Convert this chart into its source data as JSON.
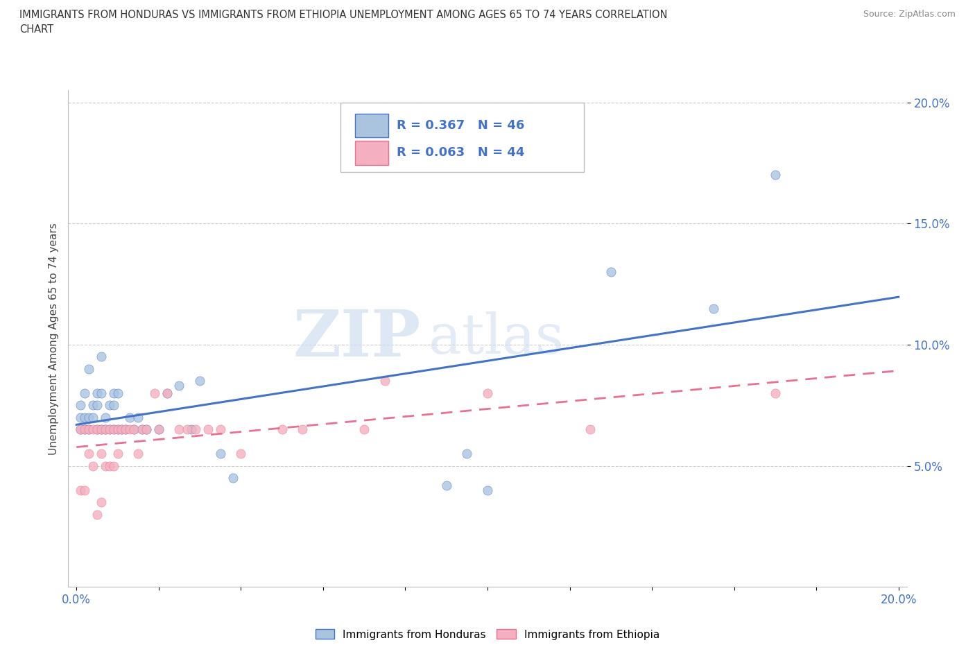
{
  "title_line1": "IMMIGRANTS FROM HONDURAS VS IMMIGRANTS FROM ETHIOPIA UNEMPLOYMENT AMONG AGES 65 TO 74 YEARS CORRELATION",
  "title_line2": "CHART",
  "source": "Source: ZipAtlas.com",
  "ylabel": "Unemployment Among Ages 65 to 74 years",
  "legend1_label": "Immigrants from Honduras",
  "legend2_label": "Immigrants from Ethiopia",
  "R_honduras": "R = 0.367",
  "N_honduras": "N = 46",
  "R_ethiopia": "R = 0.063",
  "N_ethiopia": "N = 44",
  "watermark_zip": "ZIP",
  "watermark_atlas": "atlas",
  "background_color": "#ffffff",
  "scatter_color_honduras": "#aac4e0",
  "scatter_color_ethiopia": "#f4b0c0",
  "line_color_honduras": "#4472c4",
  "line_color_ethiopia": "#e87090",
  "grid_color": "#cccccc",
  "honduras_x": [
    0.001,
    0.001,
    0.001,
    0.002,
    0.002,
    0.002,
    0.003,
    0.003,
    0.003,
    0.004,
    0.004,
    0.005,
    0.005,
    0.005,
    0.006,
    0.006,
    0.006,
    0.007,
    0.007,
    0.008,
    0.008,
    0.009,
    0.009,
    0.009,
    0.01,
    0.01,
    0.011,
    0.012,
    0.013,
    0.014,
    0.015,
    0.016,
    0.017,
    0.02,
    0.022,
    0.025,
    0.028,
    0.03,
    0.035,
    0.038,
    0.09,
    0.095,
    0.1,
    0.13,
    0.155,
    0.17
  ],
  "honduras_y": [
    0.065,
    0.07,
    0.075,
    0.065,
    0.07,
    0.08,
    0.065,
    0.07,
    0.09,
    0.07,
    0.075,
    0.065,
    0.075,
    0.08,
    0.065,
    0.08,
    0.095,
    0.065,
    0.07,
    0.065,
    0.075,
    0.065,
    0.075,
    0.08,
    0.065,
    0.08,
    0.065,
    0.065,
    0.07,
    0.065,
    0.07,
    0.065,
    0.065,
    0.065,
    0.08,
    0.083,
    0.065,
    0.085,
    0.055,
    0.045,
    0.042,
    0.055,
    0.04,
    0.13,
    0.115,
    0.17
  ],
  "ethiopia_x": [
    0.001,
    0.001,
    0.002,
    0.002,
    0.003,
    0.003,
    0.004,
    0.004,
    0.005,
    0.005,
    0.006,
    0.006,
    0.006,
    0.007,
    0.007,
    0.008,
    0.008,
    0.009,
    0.009,
    0.01,
    0.01,
    0.011,
    0.012,
    0.013,
    0.014,
    0.015,
    0.016,
    0.017,
    0.019,
    0.02,
    0.022,
    0.025,
    0.027,
    0.029,
    0.032,
    0.035,
    0.04,
    0.05,
    0.055,
    0.07,
    0.075,
    0.1,
    0.125,
    0.17
  ],
  "ethiopia_y": [
    0.065,
    0.04,
    0.065,
    0.04,
    0.065,
    0.055,
    0.065,
    0.05,
    0.065,
    0.03,
    0.055,
    0.065,
    0.035,
    0.065,
    0.05,
    0.065,
    0.05,
    0.065,
    0.05,
    0.065,
    0.055,
    0.065,
    0.065,
    0.065,
    0.065,
    0.055,
    0.065,
    0.065,
    0.08,
    0.065,
    0.08,
    0.065,
    0.065,
    0.065,
    0.065,
    0.065,
    0.055,
    0.065,
    0.065,
    0.065,
    0.085,
    0.08,
    0.065,
    0.08
  ],
  "ylim": [
    0.0,
    0.205
  ],
  "xlim": [
    -0.002,
    0.202
  ],
  "ytick_vals": [
    0.05,
    0.1,
    0.15,
    0.2
  ],
  "ytick_labels": [
    "5.0%",
    "10.0%",
    "15.0%",
    "20.0%"
  ],
  "xtick_vals": [
    0.0,
    0.02,
    0.04,
    0.06,
    0.08,
    0.1,
    0.12,
    0.14,
    0.16,
    0.18,
    0.2
  ],
  "xtick_labels": [
    "0.0%",
    "",
    "",
    "",
    "",
    "",
    "",
    "",
    "",
    "",
    "20.0%"
  ]
}
